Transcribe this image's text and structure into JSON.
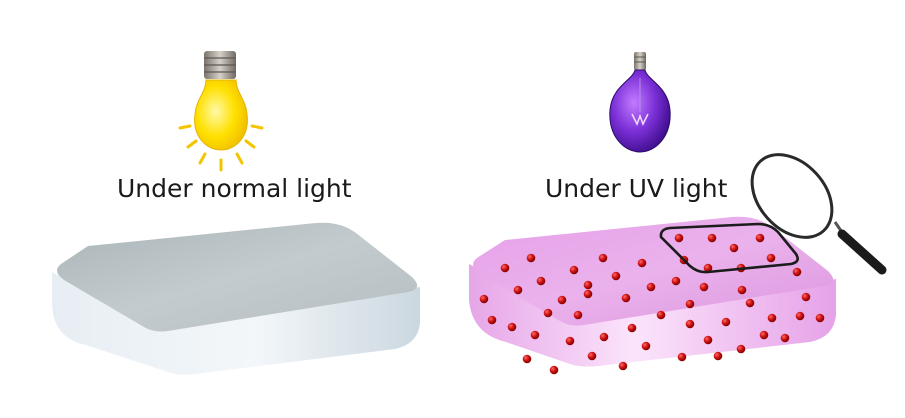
{
  "panels": [
    {
      "caption": "Under normal light",
      "light_source": {
        "icon": "light-bulb-icon",
        "color": "#ffd700"
      },
      "surface_color": "#dde3e8"
    },
    {
      "caption": "Under UV light",
      "light_source": {
        "icon": "uv-bulb-icon",
        "color": "#7a2fd6"
      },
      "surface_color": "#e9a8ea",
      "marker_color": "#cc1111",
      "tool": {
        "icon": "magnifying-glass-icon"
      }
    }
  ]
}
